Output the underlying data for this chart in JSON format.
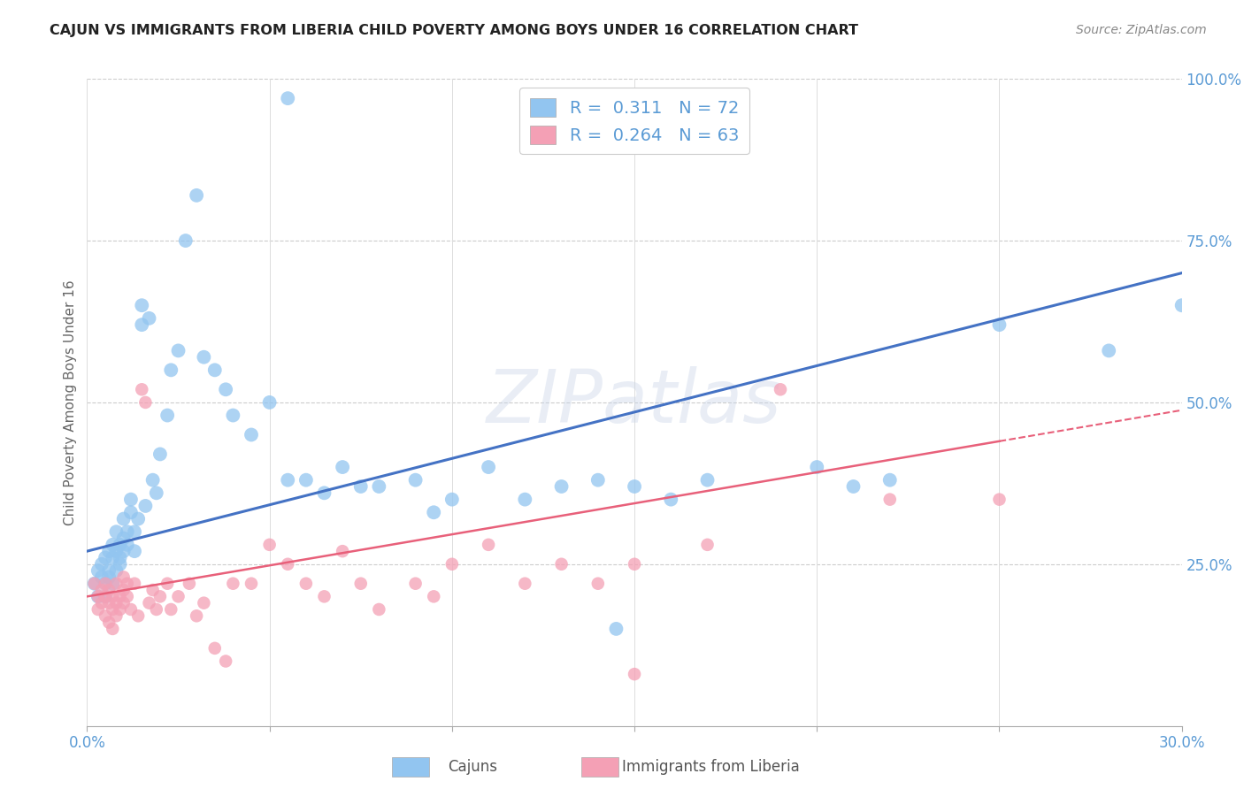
{
  "title": "CAJUN VS IMMIGRANTS FROM LIBERIA CHILD POVERTY AMONG BOYS UNDER 16 CORRELATION CHART",
  "source": "Source: ZipAtlas.com",
  "ylabel": "Child Poverty Among Boys Under 16",
  "legend_label1": "Cajuns",
  "legend_label2": "Immigrants from Liberia",
  "R1": 0.311,
  "N1": 72,
  "R2": 0.264,
  "N2": 63,
  "xlim": [
    0.0,
    0.3
  ],
  "ylim": [
    0.0,
    1.0
  ],
  "y_ticks_right": [
    0.25,
    0.5,
    0.75,
    1.0
  ],
  "y_tick_labels_right": [
    "25.0%",
    "50.0%",
    "75.0%",
    "100.0%"
  ],
  "color_cajun": "#92C5F0",
  "color_liberia": "#F4A0B5",
  "color_cajun_line": "#4472C4",
  "color_liberia_line": "#E8607A",
  "color_axis_text": "#5B9BD5",
  "color_grid": "#CCCCCC",
  "watermark": "ZIPatlas",
  "watermark_color": "#C8D4E8",
  "background": "#FFFFFF",
  "blue_line_y0": 0.27,
  "blue_line_y1": 0.7,
  "pink_line_y0": 0.2,
  "pink_line_y1": 0.44,
  "pink_line_x_end": 0.25,
  "cajun_x": [
    0.002,
    0.003,
    0.003,
    0.004,
    0.004,
    0.005,
    0.005,
    0.005,
    0.006,
    0.006,
    0.006,
    0.007,
    0.007,
    0.007,
    0.008,
    0.008,
    0.008,
    0.009,
    0.009,
    0.009,
    0.01,
    0.01,
    0.01,
    0.011,
    0.011,
    0.012,
    0.012,
    0.013,
    0.013,
    0.014,
    0.015,
    0.015,
    0.016,
    0.017,
    0.018,
    0.019,
    0.02,
    0.022,
    0.023,
    0.025,
    0.027,
    0.03,
    0.032,
    0.035,
    0.038,
    0.04,
    0.045,
    0.05,
    0.055,
    0.06,
    0.065,
    0.07,
    0.075,
    0.08,
    0.09,
    0.095,
    0.1,
    0.11,
    0.12,
    0.13,
    0.14,
    0.15,
    0.16,
    0.17,
    0.2,
    0.21,
    0.22,
    0.25,
    0.28,
    0.3,
    0.145,
    0.055
  ],
  "cajun_y": [
    0.22,
    0.24,
    0.2,
    0.23,
    0.25,
    0.22,
    0.26,
    0.2,
    0.23,
    0.27,
    0.24,
    0.26,
    0.22,
    0.28,
    0.24,
    0.27,
    0.3,
    0.25,
    0.28,
    0.26,
    0.29,
    0.27,
    0.32,
    0.3,
    0.28,
    0.33,
    0.35,
    0.3,
    0.27,
    0.32,
    0.62,
    0.65,
    0.34,
    0.63,
    0.38,
    0.36,
    0.42,
    0.48,
    0.55,
    0.58,
    0.75,
    0.82,
    0.57,
    0.55,
    0.52,
    0.48,
    0.45,
    0.5,
    0.38,
    0.38,
    0.36,
    0.4,
    0.37,
    0.37,
    0.38,
    0.33,
    0.35,
    0.4,
    0.35,
    0.37,
    0.38,
    0.37,
    0.35,
    0.38,
    0.4,
    0.37,
    0.38,
    0.62,
    0.58,
    0.65,
    0.15,
    0.97
  ],
  "liberia_x": [
    0.002,
    0.003,
    0.003,
    0.004,
    0.004,
    0.005,
    0.005,
    0.005,
    0.006,
    0.006,
    0.006,
    0.007,
    0.007,
    0.007,
    0.008,
    0.008,
    0.008,
    0.009,
    0.009,
    0.01,
    0.01,
    0.01,
    0.011,
    0.011,
    0.012,
    0.013,
    0.014,
    0.015,
    0.016,
    0.017,
    0.018,
    0.019,
    0.02,
    0.022,
    0.023,
    0.025,
    0.028,
    0.03,
    0.032,
    0.035,
    0.038,
    0.04,
    0.045,
    0.05,
    0.055,
    0.06,
    0.065,
    0.07,
    0.075,
    0.08,
    0.09,
    0.095,
    0.1,
    0.11,
    0.12,
    0.13,
    0.14,
    0.15,
    0.17,
    0.19,
    0.22,
    0.25,
    0.15
  ],
  "liberia_y": [
    0.22,
    0.18,
    0.2,
    0.21,
    0.19,
    0.2,
    0.17,
    0.22,
    0.19,
    0.16,
    0.21,
    0.18,
    0.2,
    0.15,
    0.22,
    0.19,
    0.17,
    0.2,
    0.18,
    0.21,
    0.23,
    0.19,
    0.22,
    0.2,
    0.18,
    0.22,
    0.17,
    0.52,
    0.5,
    0.19,
    0.21,
    0.18,
    0.2,
    0.22,
    0.18,
    0.2,
    0.22,
    0.17,
    0.19,
    0.12,
    0.1,
    0.22,
    0.22,
    0.28,
    0.25,
    0.22,
    0.2,
    0.27,
    0.22,
    0.18,
    0.22,
    0.2,
    0.25,
    0.28,
    0.22,
    0.25,
    0.22,
    0.25,
    0.28,
    0.52,
    0.35,
    0.35,
    0.08
  ]
}
